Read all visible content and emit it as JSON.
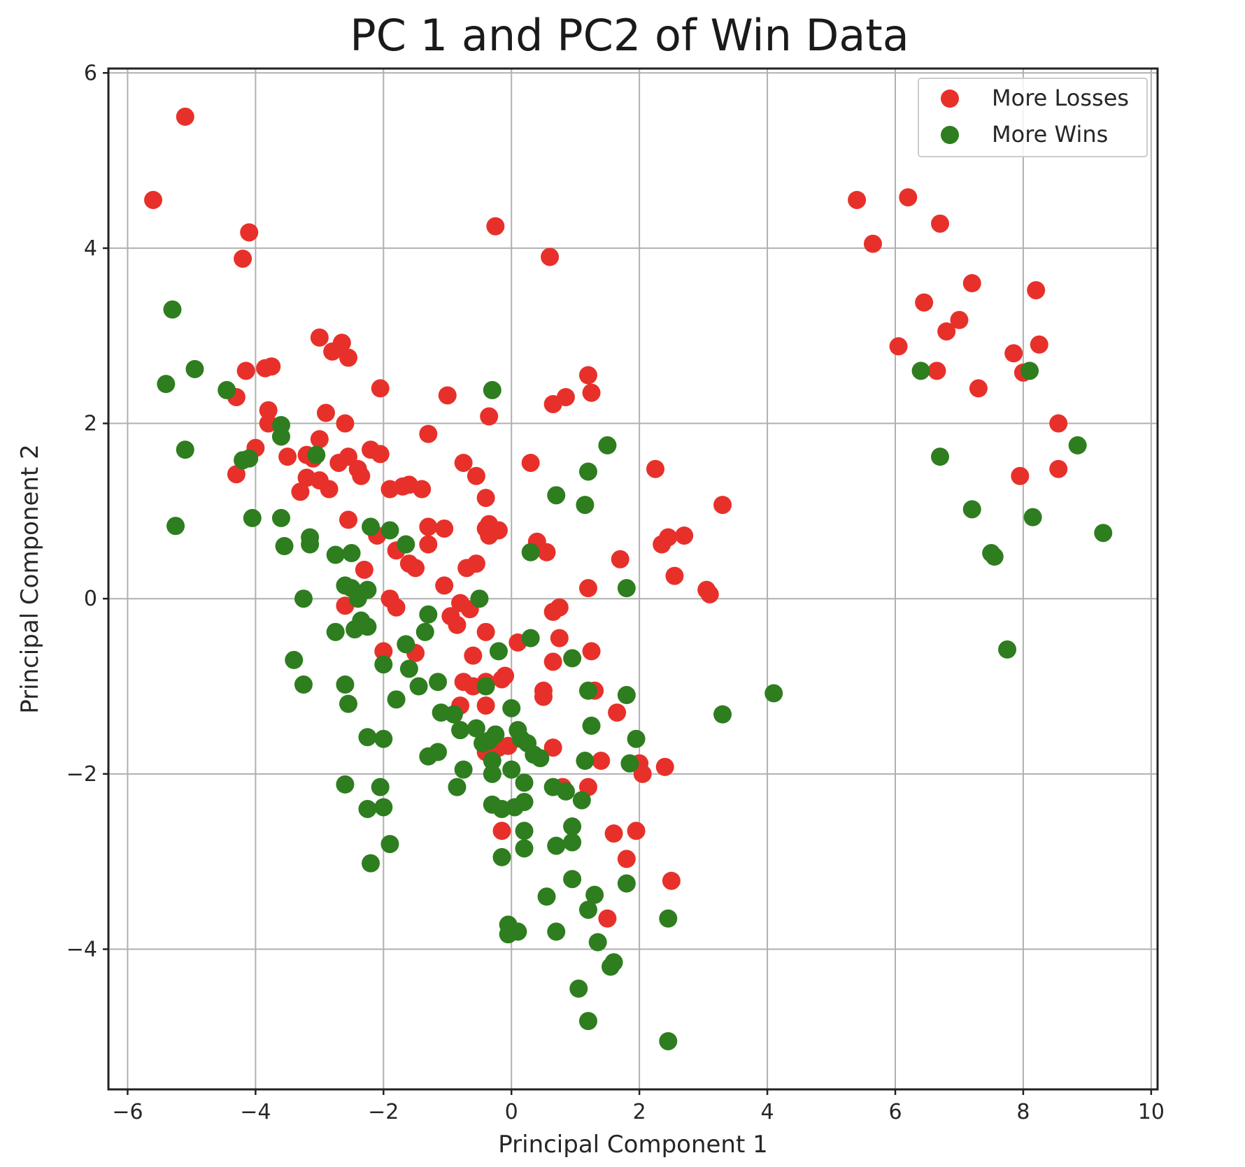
{
  "chart_data": {
    "type": "scatter",
    "title": "PC 1 and PC2 of Win Data",
    "xlabel": "Principal Component 1",
    "ylabel": "Principal Component 2",
    "xlim": [
      -6.3,
      10.1
    ],
    "ylim": [
      -5.6,
      6.05
    ],
    "xticks": [
      -6,
      -4,
      -2,
      0,
      2,
      4,
      6,
      8,
      10
    ],
    "yticks": [
      -4,
      -2,
      0,
      2,
      4,
      6
    ],
    "xtick_labels": [
      "−6",
      "−4",
      "−2",
      "0",
      "2",
      "4",
      "6",
      "8",
      "10"
    ],
    "ytick_labels": [
      "−4",
      "−2",
      "0",
      "2",
      "4",
      "6"
    ],
    "grid": true,
    "legend_position": "top-right",
    "series": [
      {
        "name": "More Losses",
        "color": "#e8302a",
        "points": [
          [
            -5.6,
            4.55
          ],
          [
            -5.1,
            5.5
          ],
          [
            -4.2,
            3.88
          ],
          [
            -4.1,
            4.18
          ],
          [
            -4.3,
            2.3
          ],
          [
            -4.15,
            2.6
          ],
          [
            -3.85,
            2.63
          ],
          [
            -3.75,
            2.65
          ],
          [
            -3.8,
            2.15
          ],
          [
            -3.8,
            2.0
          ],
          [
            -4.0,
            1.72
          ],
          [
            -4.3,
            1.42
          ],
          [
            -3.5,
            1.62
          ],
          [
            -3.3,
            1.22
          ],
          [
            -3.2,
            1.38
          ],
          [
            -3.1,
            1.6
          ],
          [
            -3.2,
            1.64
          ],
          [
            -3.0,
            1.82
          ],
          [
            -2.9,
            2.12
          ],
          [
            -3.0,
            2.98
          ],
          [
            -2.8,
            2.82
          ],
          [
            -2.65,
            2.92
          ],
          [
            -2.55,
            2.75
          ],
          [
            -2.6,
            2.0
          ],
          [
            -2.7,
            1.55
          ],
          [
            -2.55,
            1.62
          ],
          [
            -2.4,
            1.48
          ],
          [
            -2.35,
            1.4
          ],
          [
            -2.2,
            1.7
          ],
          [
            -2.05,
            1.65
          ],
          [
            -2.05,
            2.4
          ],
          [
            -3.0,
            1.35
          ],
          [
            -2.85,
            1.25
          ],
          [
            -2.55,
            0.9
          ],
          [
            -2.1,
            0.72
          ],
          [
            -2.3,
            0.33
          ],
          [
            -2.6,
            -0.08
          ],
          [
            -1.9,
            1.25
          ],
          [
            -1.7,
            1.28
          ],
          [
            -1.6,
            1.3
          ],
          [
            -1.4,
            1.25
          ],
          [
            -1.3,
            1.88
          ],
          [
            -1.0,
            2.32
          ],
          [
            -1.8,
            0.55
          ],
          [
            -1.6,
            0.4
          ],
          [
            -1.5,
            0.35
          ],
          [
            -1.3,
            0.82
          ],
          [
            -1.3,
            0.62
          ],
          [
            -1.05,
            0.8
          ],
          [
            -1.05,
            0.15
          ],
          [
            -0.75,
            1.55
          ],
          [
            -0.55,
            1.4
          ],
          [
            -0.4,
            1.15
          ],
          [
            -0.4,
            0.8
          ],
          [
            -0.35,
            0.85
          ],
          [
            -0.2,
            0.78
          ],
          [
            -0.35,
            0.72
          ],
          [
            -0.55,
            0.4
          ],
          [
            -0.7,
            0.35
          ],
          [
            -1.9,
            0.0
          ],
          [
            -1.8,
            -0.1
          ],
          [
            -0.95,
            -0.2
          ],
          [
            -0.85,
            -0.3
          ],
          [
            -0.8,
            -0.05
          ],
          [
            -0.65,
            -0.12
          ],
          [
            -0.4,
            -0.38
          ],
          [
            -2.0,
            -0.6
          ],
          [
            -1.5,
            -0.62
          ],
          [
            -0.6,
            -0.65
          ],
          [
            -0.75,
            -0.95
          ],
          [
            -0.6,
            -1.0
          ],
          [
            -0.4,
            -0.95
          ],
          [
            -0.15,
            -0.92
          ],
          [
            -0.4,
            -1.22
          ],
          [
            -0.8,
            -1.22
          ],
          [
            -0.1,
            -0.88
          ],
          [
            -0.4,
            -1.75
          ],
          [
            -0.2,
            -1.7
          ],
          [
            -0.05,
            -1.68
          ],
          [
            -0.15,
            -2.65
          ],
          [
            -0.25,
            4.25
          ],
          [
            -0.35,
            2.08
          ],
          [
            0.6,
            3.9
          ],
          [
            0.65,
            2.22
          ],
          [
            0.85,
            2.3
          ],
          [
            0.3,
            1.55
          ],
          [
            0.4,
            0.65
          ],
          [
            0.55,
            0.53
          ],
          [
            1.2,
            2.55
          ],
          [
            1.25,
            2.35
          ],
          [
            0.75,
            -0.1
          ],
          [
            0.65,
            -0.15
          ],
          [
            0.75,
            -0.45
          ],
          [
            0.65,
            -0.72
          ],
          [
            0.5,
            -1.05
          ],
          [
            0.5,
            -1.12
          ],
          [
            0.1,
            -0.5
          ],
          [
            0.65,
            -1.7
          ],
          [
            0.8,
            -2.15
          ],
          [
            1.25,
            -0.6
          ],
          [
            1.3,
            -1.05
          ],
          [
            1.2,
            -2.15
          ],
          [
            1.4,
            -1.85
          ],
          [
            1.2,
            0.12
          ],
          [
            1.7,
            0.45
          ],
          [
            1.65,
            -1.3
          ],
          [
            2.25,
            1.48
          ],
          [
            2.35,
            0.62
          ],
          [
            2.45,
            0.7
          ],
          [
            2.7,
            0.72
          ],
          [
            2.55,
            0.26
          ],
          [
            3.3,
            1.07
          ],
          [
            3.05,
            0.1
          ],
          [
            3.1,
            0.05
          ],
          [
            2.0,
            -1.88
          ],
          [
            2.05,
            -2.0
          ],
          [
            2.4,
            -1.92
          ],
          [
            1.6,
            -2.68
          ],
          [
            1.95,
            -2.65
          ],
          [
            1.8,
            -2.97
          ],
          [
            2.5,
            -3.22
          ],
          [
            1.5,
            -3.65
          ],
          [
            5.4,
            4.55
          ],
          [
            5.65,
            4.05
          ],
          [
            6.2,
            4.58
          ],
          [
            6.7,
            4.28
          ],
          [
            6.45,
            3.38
          ],
          [
            6.8,
            3.05
          ],
          [
            7.0,
            3.18
          ],
          [
            7.2,
            3.6
          ],
          [
            6.05,
            2.88
          ],
          [
            6.65,
            2.6
          ],
          [
            7.3,
            2.4
          ],
          [
            7.85,
            2.8
          ],
          [
            8.0,
            2.58
          ],
          [
            8.2,
            3.52
          ],
          [
            8.25,
            2.9
          ],
          [
            8.55,
            2.0
          ],
          [
            7.95,
            1.4
          ],
          [
            8.55,
            1.48
          ]
        ]
      },
      {
        "name": "More Wins",
        "color": "#2e7d1f",
        "points": [
          [
            -5.3,
            3.3
          ],
          [
            -5.4,
            2.45
          ],
          [
            -4.95,
            2.62
          ],
          [
            -4.45,
            2.38
          ],
          [
            -5.1,
            1.7
          ],
          [
            -5.25,
            0.83
          ],
          [
            -4.1,
            1.6
          ],
          [
            -4.2,
            1.58
          ],
          [
            -4.05,
            0.92
          ],
          [
            -3.6,
            1.98
          ],
          [
            -3.6,
            1.85
          ],
          [
            -3.05,
            1.64
          ],
          [
            -3.6,
            0.92
          ],
          [
            -3.55,
            0.6
          ],
          [
            -3.15,
            0.7
          ],
          [
            -3.15,
            0.62
          ],
          [
            -3.25,
            0.0
          ],
          [
            -3.4,
            -0.7
          ],
          [
            -3.25,
            -0.98
          ],
          [
            -2.75,
            0.5
          ],
          [
            -2.5,
            0.52
          ],
          [
            -2.6,
            0.15
          ],
          [
            -2.5,
            0.12
          ],
          [
            -2.25,
            0.1
          ],
          [
            -2.4,
            0.0
          ],
          [
            -2.75,
            -0.38
          ],
          [
            -2.45,
            -0.35
          ],
          [
            -2.35,
            -0.25
          ],
          [
            -2.25,
            -0.32
          ],
          [
            -2.6,
            -0.98
          ],
          [
            -2.55,
            -1.2
          ],
          [
            -2.2,
            0.82
          ],
          [
            -1.9,
            0.78
          ],
          [
            -1.65,
            0.62
          ],
          [
            -2.25,
            -1.58
          ],
          [
            -2.0,
            -1.6
          ],
          [
            -2.0,
            -0.75
          ],
          [
            -1.8,
            -1.15
          ],
          [
            -1.65,
            -0.52
          ],
          [
            -1.6,
            -0.8
          ],
          [
            -1.45,
            -1.0
          ],
          [
            -1.3,
            -0.18
          ],
          [
            -1.35,
            -0.38
          ],
          [
            -1.15,
            -0.95
          ],
          [
            -1.1,
            -1.3
          ],
          [
            -0.9,
            -1.32
          ],
          [
            -0.8,
            -1.5
          ],
          [
            -1.3,
            -1.8
          ],
          [
            -1.15,
            -1.75
          ],
          [
            -0.75,
            -1.95
          ],
          [
            -0.85,
            -2.15
          ],
          [
            -0.55,
            -1.48
          ],
          [
            -0.45,
            -1.65
          ],
          [
            -0.35,
            -1.62
          ],
          [
            -0.3,
            -1.85
          ],
          [
            -0.25,
            -1.55
          ],
          [
            -0.3,
            -2.0
          ],
          [
            -0.5,
            0.0
          ],
          [
            -0.3,
            2.38
          ],
          [
            -0.4,
            -1.0
          ],
          [
            -0.2,
            -0.6
          ],
          [
            0.0,
            -1.25
          ],
          [
            0.1,
            -1.5
          ],
          [
            0.15,
            -1.6
          ],
          [
            0.25,
            -1.65
          ],
          [
            0.35,
            -1.78
          ],
          [
            0.45,
            -1.82
          ],
          [
            0.0,
            -1.95
          ],
          [
            0.2,
            -2.1
          ],
          [
            0.3,
            -0.45
          ],
          [
            -0.3,
            -2.35
          ],
          [
            -0.15,
            -2.4
          ],
          [
            0.05,
            -2.38
          ],
          [
            0.2,
            -2.32
          ],
          [
            0.2,
            -2.65
          ],
          [
            -0.15,
            -2.95
          ],
          [
            0.2,
            -2.85
          ],
          [
            -2.05,
            -2.15
          ],
          [
            -2.0,
            -2.38
          ],
          [
            -2.25,
            -2.4
          ],
          [
            -1.9,
            -2.8
          ],
          [
            -2.2,
            -3.02
          ],
          [
            -2.6,
            -2.12
          ],
          [
            0.3,
            0.53
          ],
          [
            0.7,
            1.18
          ],
          [
            1.15,
            1.07
          ],
          [
            1.2,
            1.45
          ],
          [
            1.5,
            1.75
          ],
          [
            0.95,
            -0.68
          ],
          [
            1.2,
            -1.05
          ],
          [
            1.25,
            -1.45
          ],
          [
            1.15,
            -1.85
          ],
          [
            0.65,
            -2.15
          ],
          [
            0.85,
            -2.2
          ],
          [
            1.1,
            -2.3
          ],
          [
            0.95,
            -2.6
          ],
          [
            0.95,
            -2.78
          ],
          [
            0.7,
            -2.82
          ],
          [
            0.55,
            -3.4
          ],
          [
            0.95,
            -3.2
          ],
          [
            1.3,
            -3.38
          ],
          [
            1.2,
            -3.55
          ],
          [
            1.35,
            -3.92
          ],
          [
            -0.05,
            -3.72
          ],
          [
            -0.05,
            -3.83
          ],
          [
            0.1,
            -3.8
          ],
          [
            0.7,
            -3.8
          ],
          [
            1.05,
            -4.45
          ],
          [
            1.55,
            -4.2
          ],
          [
            1.6,
            -4.15
          ],
          [
            1.2,
            -4.82
          ],
          [
            1.8,
            -3.25
          ],
          [
            1.8,
            0.12
          ],
          [
            1.8,
            -1.1
          ],
          [
            1.95,
            -1.6
          ],
          [
            1.85,
            -1.88
          ],
          [
            2.45,
            -3.65
          ],
          [
            2.45,
            -5.05
          ],
          [
            3.3,
            -1.32
          ],
          [
            4.1,
            -1.08
          ],
          [
            6.4,
            2.6
          ],
          [
            6.7,
            1.62
          ],
          [
            7.2,
            1.02
          ],
          [
            7.5,
            0.52
          ],
          [
            7.55,
            0.48
          ],
          [
            8.1,
            2.6
          ],
          [
            8.15,
            0.93
          ],
          [
            7.75,
            -0.58
          ],
          [
            8.85,
            1.75
          ],
          [
            9.25,
            0.75
          ]
        ]
      }
    ]
  }
}
